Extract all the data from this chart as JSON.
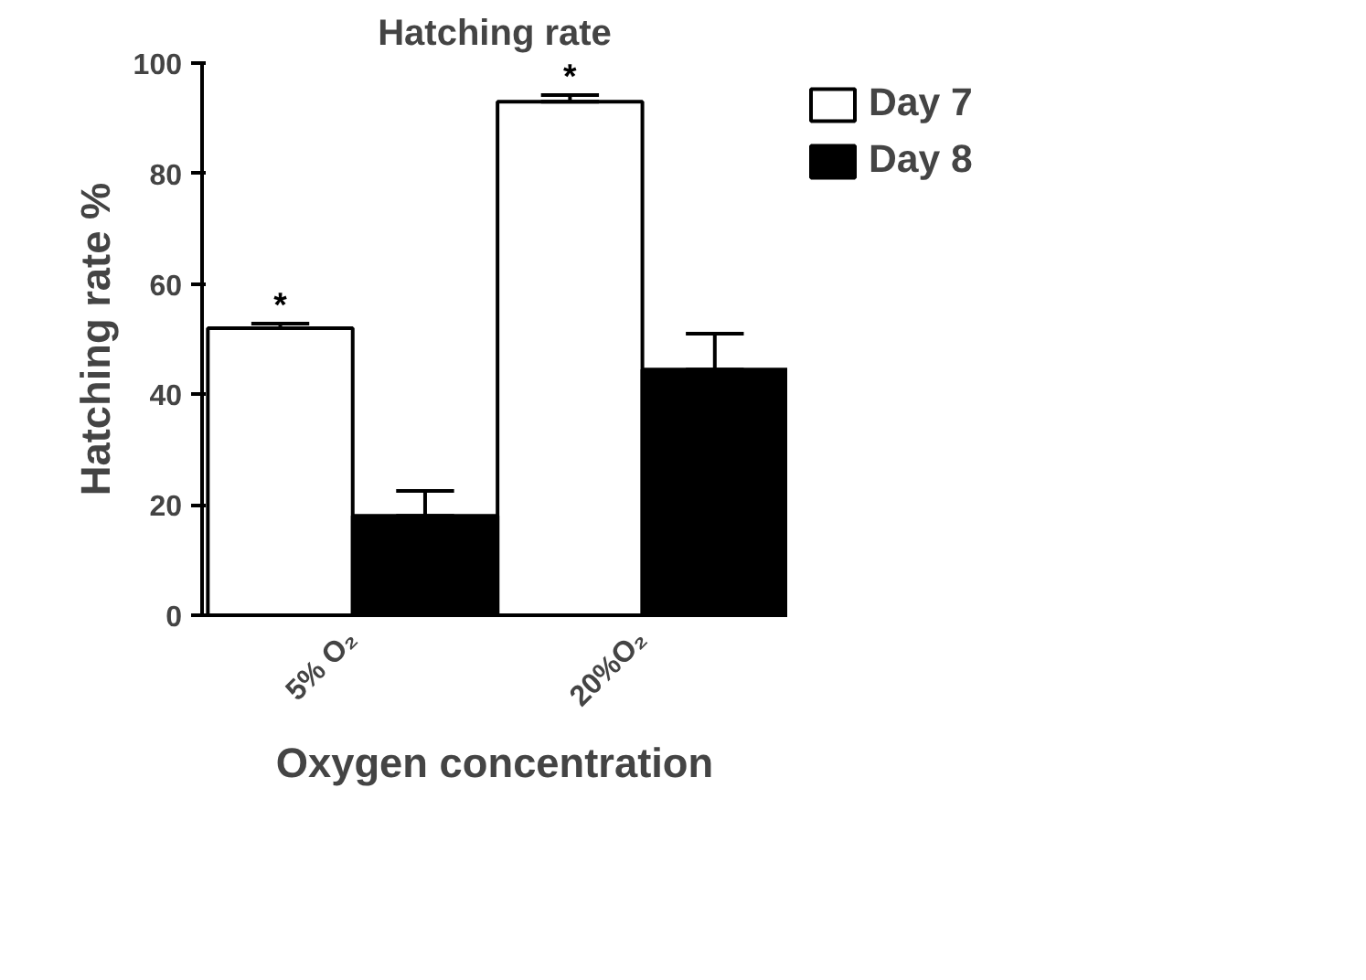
{
  "chart_data": {
    "type": "bar",
    "title": "Hatching rate",
    "xlabel": "Oxygen concentration",
    "ylabel": "Hatching rate %",
    "categories": [
      "5% O₂",
      "20%O₂"
    ],
    "series": [
      {
        "name": "Day 7",
        "color": "#ffffff",
        "values": [
          52,
          93
        ],
        "errors": [
          [
            52,
            52.8
          ],
          [
            93,
            94.2
          ]
        ]
      },
      {
        "name": "Day 8",
        "color": "#000000",
        "values": [
          18,
          44.5
        ],
        "errors": [
          [
            18,
            22.5
          ],
          [
            44.5,
            51
          ]
        ]
      }
    ],
    "ylim": [
      0,
      100
    ],
    "yticks": [
      0,
      20,
      40,
      60,
      80,
      100
    ],
    "grid": false,
    "legend": "top right",
    "annotations": [
      "*",
      "*"
    ]
  }
}
